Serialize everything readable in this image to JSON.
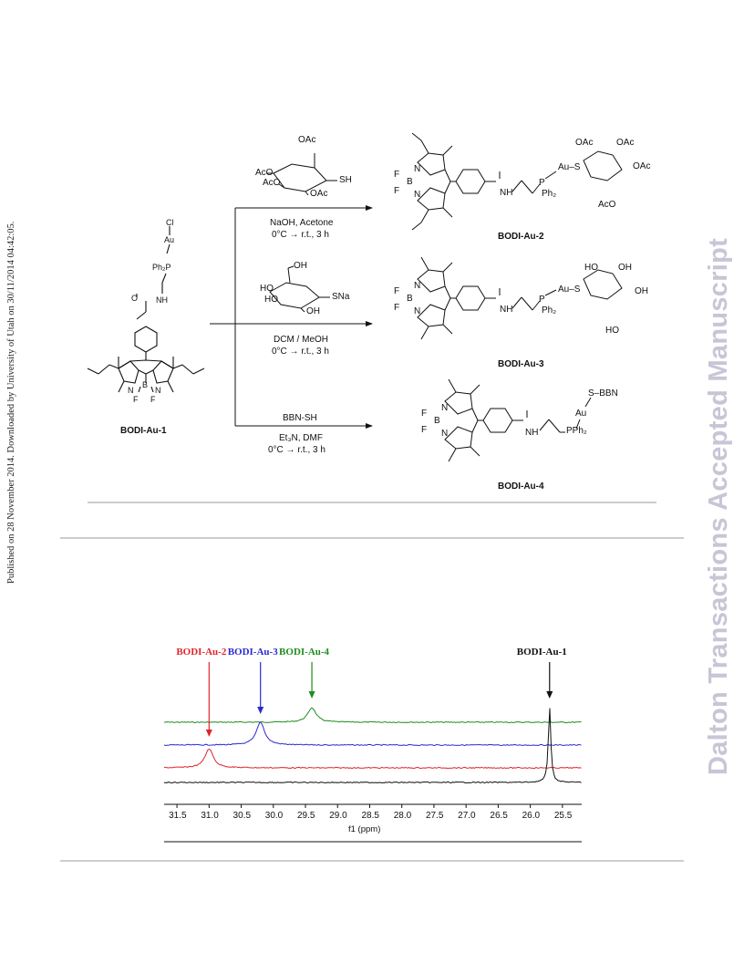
{
  "sidebar": {
    "publication_note": "Published on 28 November 2014. Downloaded by University of Utah on 30/11/2014 04:42:05.",
    "journal_watermark": "Dalton Transactions Accepted Manuscript"
  },
  "scheme": {
    "starting_compound": "BODI-Au-1",
    "start_atoms": {
      "cl": "Cl",
      "au": "Au",
      "phosphine": "Ph₂P",
      "amide_nh": "NH",
      "n": "N",
      "b": "B",
      "f1": "F",
      "f2": "F"
    },
    "reactions": [
      {
        "reagent_label": "SH",
        "reagent_groups": [
          "OAc",
          "AcO",
          "AcO",
          "OAc"
        ],
        "conditions_1": "NaOH, Acetone",
        "conditions_2": "0°C → r.t., 3 h",
        "product": "BODI-Au-2",
        "product_atoms": {
          "au_s": "Au–S",
          "ph2": "Ph₂",
          "p": "P",
          "nh": "NH",
          "f1": "F",
          "f2": "F",
          "b": "B",
          "n1": "N",
          "n2": "N",
          "sugar": [
            "OAc",
            "OAc",
            "OAc",
            "AcO"
          ]
        }
      },
      {
        "reagent_label": "SNa",
        "reagent_groups": [
          "OH",
          "HO",
          "HO",
          "OH"
        ],
        "conditions_1": "DCM / MeOH",
        "conditions_2": "0°C → r.t., 3 h",
        "product": "BODI-Au-3",
        "product_atoms": {
          "au_s": "Au–S",
          "ph2": "Ph₂",
          "p": "P",
          "nh": "NH",
          "f1": "F",
          "f2": "F",
          "b": "B",
          "n1": "N",
          "n2": "N",
          "sugar": [
            "HO",
            "OH",
            "OH",
            "HO"
          ]
        }
      },
      {
        "reagent_label": "BBN-SH",
        "reagent_groups": [],
        "conditions_1": "Et₃N, DMF",
        "conditions_2": "0°C → r.t., 3 h",
        "product": "BODI-Au-4",
        "product_atoms": {
          "s_bbn": "S–BBN",
          "au": "Au",
          "pph2": "PPh₂",
          "nh": "NH",
          "f1": "F",
          "f2": "F",
          "b": "B",
          "n1": "N",
          "n2": "N"
        }
      }
    ]
  },
  "nmr": {
    "xlabel": "f1 (ppm)",
    "xlim": [
      31.7,
      25.2
    ],
    "ticks": [
      "31.5",
      "31.0",
      "30.5",
      "30.0",
      "29.5",
      "29.0",
      "28.5",
      "28.0",
      "27.5",
      "27.0",
      "26.5",
      "26.0",
      "25.5"
    ],
    "tick_values": [
      31.5,
      31.0,
      30.5,
      30.0,
      29.5,
      29.0,
      28.5,
      28.0,
      27.5,
      27.0,
      26.5,
      26.0,
      25.5
    ],
    "labels": [
      {
        "name": "BODI-Au-2",
        "color": "#e0242b",
        "ppm": 31.0
      },
      {
        "name": "BODI-Au-3",
        "color": "#2a2ad0",
        "ppm": 30.2
      },
      {
        "name": "BODI-Au-4",
        "color": "#1e8c1e",
        "ppm": 29.4
      },
      {
        "name": "BODI-Au-1",
        "color": "#111111",
        "ppm": 25.7
      }
    ],
    "chart_data": {
      "type": "line",
      "xlabel": "f1 (ppm)",
      "xlim": [
        31.7,
        25.2
      ],
      "series": [
        {
          "name": "BODI-Au-4",
          "color": "#1e8c1e",
          "peak_ppm": 29.4,
          "relative_intensity": 0.42
        },
        {
          "name": "BODI-Au-3",
          "color": "#2a2ad0",
          "peak_ppm": 30.2,
          "relative_intensity": 0.66
        },
        {
          "name": "BODI-Au-2",
          "color": "#e0242b",
          "peak_ppm": 31.0,
          "relative_intensity": 0.55
        },
        {
          "name": "BODI-Au-1",
          "color": "#111111",
          "peak_ppm": 25.7,
          "relative_intensity": 2.2
        }
      ]
    }
  }
}
